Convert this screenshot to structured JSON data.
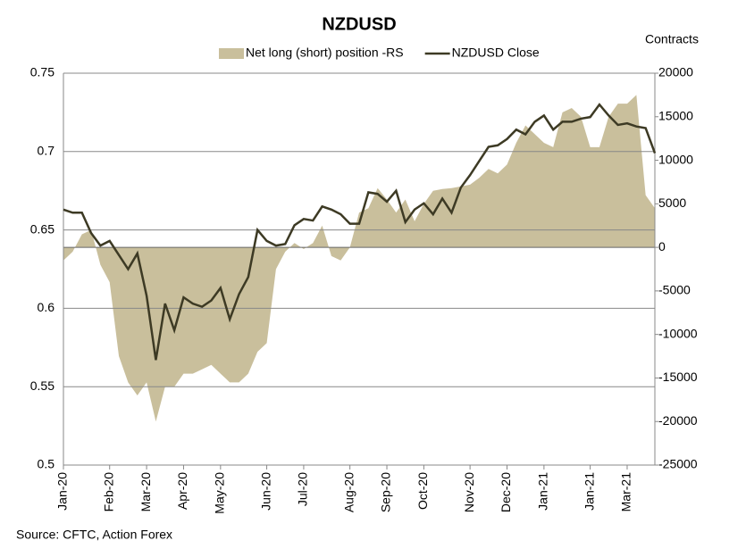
{
  "chart_data": {
    "type": "area-line",
    "title": "NZDUSD",
    "y2_label": "Contracts",
    "source": "Source: CFTC, Action Forex",
    "categories": [
      "Jan-20",
      null,
      null,
      null,
      null,
      "Feb-20",
      null,
      null,
      null,
      "Mar-20",
      null,
      null,
      null,
      "Apr-20",
      null,
      null,
      null,
      "May-20",
      null,
      null,
      null,
      null,
      "Jun-20",
      null,
      null,
      null,
      "Jul-20",
      null,
      null,
      null,
      null,
      "Aug-20",
      null,
      null,
      null,
      "Sep-20",
      null,
      null,
      null,
      "Oct-20",
      null,
      null,
      null,
      null,
      "Nov-20",
      null,
      null,
      null,
      "Dec-20",
      null,
      null,
      null,
      "Jan-21",
      null,
      null,
      null,
      null,
      "Jan-21",
      null,
      null,
      null,
      "Mar-21",
      null,
      null,
      null
    ],
    "series": [
      {
        "name": "Net long (short) position -RS",
        "color": "#c9bf9c",
        "axis": "y2",
        "kind": "area",
        "values": [
          -1500,
          -500,
          1500,
          2000,
          -2000,
          -4000,
          -12500,
          -15500,
          -17000,
          -15500,
          -20000,
          -16000,
          -16000,
          -14500,
          -14500,
          -14000,
          -13500,
          -14500,
          -15500,
          -15500,
          -14500,
          -12000,
          -11000,
          -2500,
          -500,
          500,
          -200,
          500,
          2500,
          -1000,
          -1500,
          0,
          4000,
          4500,
          6800,
          5500,
          4000,
          5500,
          3000,
          5000,
          6500,
          6700,
          6800,
          7000,
          7200,
          8000,
          9000,
          8500,
          9500,
          12000,
          14000,
          13000,
          12000,
          11500,
          15500,
          16000,
          15000,
          11500,
          11500,
          15000,
          16500,
          16500,
          17500,
          6000,
          4500
        ]
      },
      {
        "name": "NZDUSD Close",
        "color": "#3d3a24",
        "axis": "y",
        "kind": "line",
        "values": [
          0.663,
          0.661,
          0.661,
          0.648,
          0.64,
          0.643,
          0.634,
          0.625,
          0.635,
          0.608,
          0.567,
          0.603,
          0.586,
          0.607,
          0.603,
          0.601,
          0.605,
          0.613,
          0.593,
          0.609,
          0.62,
          0.65,
          0.643,
          0.64,
          0.641,
          0.653,
          0.657,
          0.656,
          0.665,
          0.663,
          0.66,
          0.654,
          0.654,
          0.674,
          0.673,
          0.668,
          0.675,
          0.655,
          0.663,
          0.667,
          0.66,
          0.67,
          0.661,
          0.677,
          0.685,
          0.694,
          0.703,
          0.704,
          0.708,
          0.714,
          0.711,
          0.719,
          0.723,
          0.714,
          0.719,
          0.719,
          0.721,
          0.722,
          0.73,
          0.723,
          0.717,
          0.718,
          0.716,
          0.715,
          0.699
        ]
      }
    ],
    "ylim": [
      0.5,
      0.75
    ],
    "yticks": [
      0.5,
      0.55,
      0.6,
      0.65,
      0.7,
      0.75
    ],
    "y2lim": [
      -25000,
      20000
    ],
    "y2ticks": [
      -25000,
      -20000,
      -15000,
      -10000,
      -5000,
      0,
      5000,
      10000,
      15000,
      20000
    ],
    "grid": true
  }
}
